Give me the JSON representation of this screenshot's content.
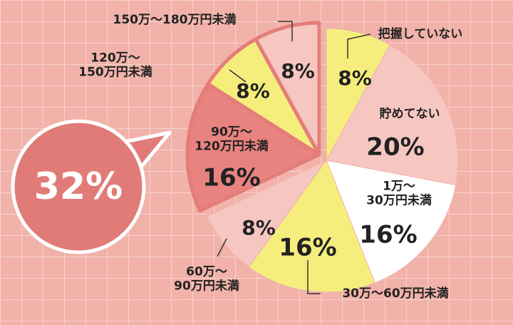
{
  "chart_data": {
    "type": "pie",
    "categories": [
      "把握していない",
      "貯めてない",
      "1万～\n30万円未満",
      "30万～60万円未満",
      "60万～\n90万円未満",
      "90万～\n120万円未満",
      "120万～\n150万円未満",
      "150万～180万円未満"
    ],
    "values": [
      8,
      20,
      16,
      16,
      8,
      16,
      8,
      8
    ],
    "value_labels": [
      "8%",
      "20%",
      "16%",
      "16%",
      "8%",
      "16%",
      "8%",
      "8%"
    ],
    "colors": [
      "#f6ee7c",
      "#f6c6c1",
      "#ffffff",
      "#f6ee7c",
      "#f6c6c1",
      "#e8837f",
      "#f6ee7c",
      "#f6c6c1"
    ],
    "highlight": {
      "value": 32,
      "label": "32%"
    }
  }
}
